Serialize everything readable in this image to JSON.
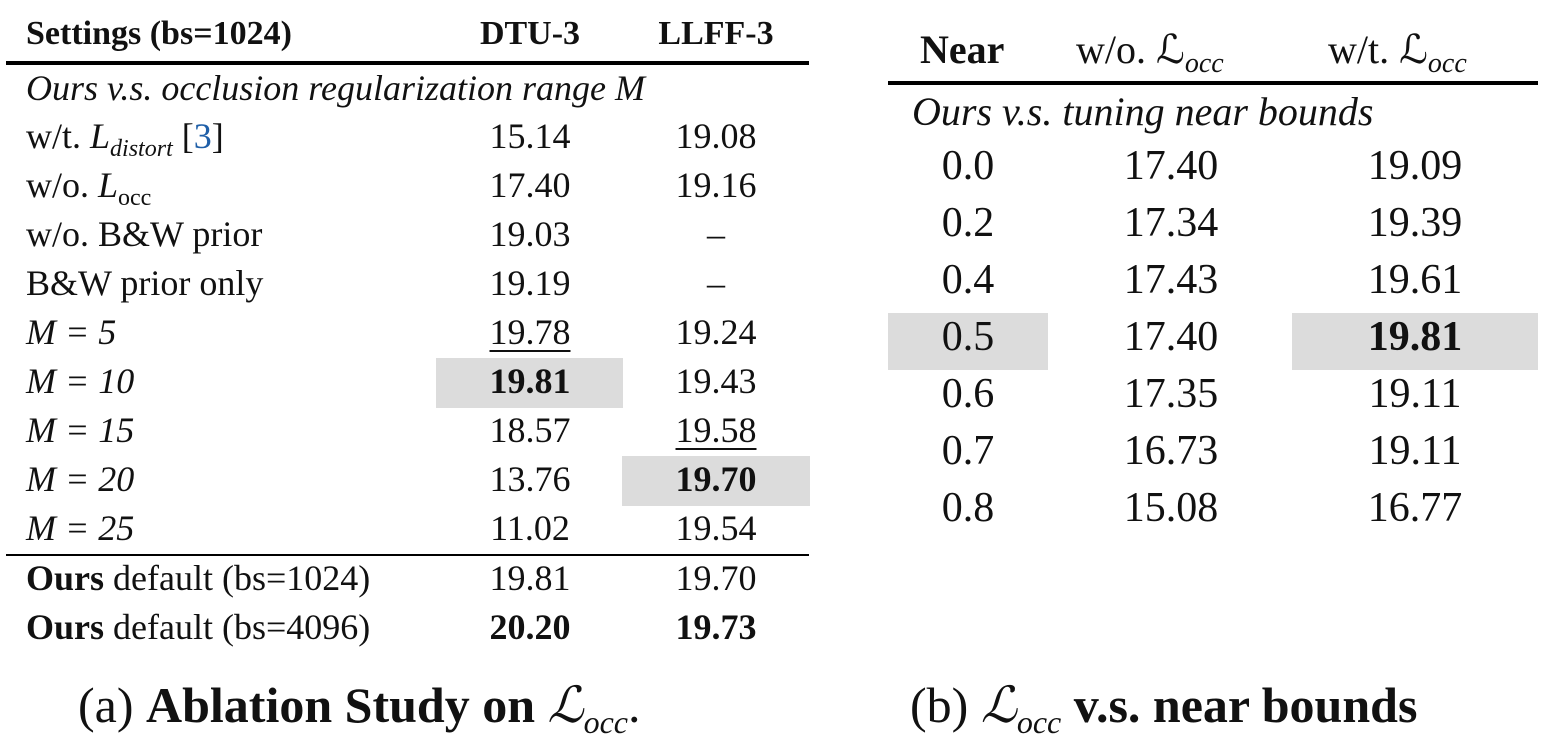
{
  "table_a": {
    "headers": [
      "Settings (bs=1024)",
      "DTU-3",
      "LLFF-3"
    ],
    "section_label": "Ours v.s. occlusion regularization range M",
    "rows": [
      {
        "setting": "w/t. L_distort [3]",
        "dtu": "15.14",
        "llff": "19.08"
      },
      {
        "setting": "w/o. L_occ",
        "dtu": "17.40",
        "llff": "19.16"
      },
      {
        "setting": "w/o. B&W prior",
        "dtu": "19.03",
        "llff": "–"
      },
      {
        "setting": "B&W prior only",
        "dtu": "19.19",
        "llff": "–"
      },
      {
        "setting": "M = 5",
        "dtu": "19.78",
        "llff": "19.24"
      },
      {
        "setting": "M = 10",
        "dtu": "19.81",
        "llff": "19.43"
      },
      {
        "setting": "M = 15",
        "dtu": "18.57",
        "llff": "19.58"
      },
      {
        "setting": "M = 20",
        "dtu": "13.76",
        "llff": "19.70"
      },
      {
        "setting": "M = 25",
        "dtu": "11.02",
        "llff": "19.54"
      }
    ],
    "defaults": [
      {
        "bold": "Ours",
        "rest": " default (bs=1024)",
        "dtu": "19.81",
        "llff": "19.70"
      },
      {
        "bold": "Ours",
        "rest": " default (bs=4096)",
        "dtu": "20.20",
        "llff": "19.73"
      }
    ],
    "caption_prefix": "(a) ",
    "caption_bold": "Ablation Study on ",
    "caption_math": "ℒ",
    "caption_sub": "occ",
    "caption_end": "."
  },
  "table_b": {
    "headers": [
      "Near",
      "w/o. ℒ",
      "w/t. ℒ"
    ],
    "header_sub": "occ",
    "section_label": "Ours v.s. tuning near bounds",
    "rows": [
      {
        "near": "0.0",
        "wo": "17.40",
        "wt": "19.09"
      },
      {
        "near": "0.2",
        "wo": "17.34",
        "wt": "19.39"
      },
      {
        "near": "0.4",
        "wo": "17.43",
        "wt": "19.61"
      },
      {
        "near": "0.5",
        "wo": "17.40",
        "wt": "19.81"
      },
      {
        "near": "0.6",
        "wo": "17.35",
        "wt": "19.11"
      },
      {
        "near": "0.7",
        "wo": "16.73",
        "wt": "19.11"
      },
      {
        "near": "0.8",
        "wo": "15.08",
        "wt": "16.77"
      }
    ],
    "caption_prefix": "(b) ",
    "caption_math": "ℒ",
    "caption_sub": "occ",
    "caption_bold": " v.s. near bounds"
  }
}
